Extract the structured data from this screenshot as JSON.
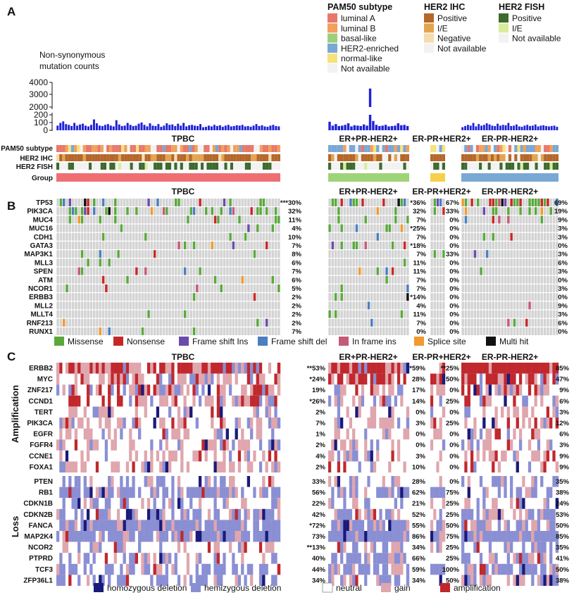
{
  "panels": [
    "A",
    "B",
    "C"
  ],
  "legends": {
    "pam50": {
      "title": "PAM50 subtype",
      "items": [
        {
          "label": "luminal A",
          "color": "#e8786b"
        },
        {
          "label": "luminal B",
          "color": "#f2a05a"
        },
        {
          "label": "basal-like",
          "color": "#9dcf7a"
        },
        {
          "label": "HER2-enriched",
          "color": "#79a8d4"
        },
        {
          "label": "normal-like",
          "color": "#f6e27a"
        },
        {
          "label": "Not available",
          "color": "#f2f2f2"
        }
      ]
    },
    "her2_ihc": {
      "title": "HER2 IHC",
      "items": [
        {
          "label": "Positive",
          "color": "#b5672a"
        },
        {
          "label": "I/E",
          "color": "#e2a54f"
        },
        {
          "label": "Negative",
          "color": "#f5dcaf"
        },
        {
          "label": "Not available",
          "color": "#f2f2f2"
        }
      ]
    },
    "her2_fish": {
      "title": "HER2 FISH",
      "items": [
        {
          "label": "Positive",
          "color": "#3d6b2e"
        },
        {
          "label": "I/E",
          "color": "#d9ec9c"
        },
        {
          "label": "Not available",
          "color": "#f2f2f2"
        }
      ]
    }
  },
  "groups": [
    {
      "name": "TPBC",
      "color": "#ee6f73",
      "n": 38
    },
    {
      "name": "ER+PR-HER2+",
      "color": "#9fd378",
      "n": 14
    },
    {
      "name": "ER-PR+HER2+",
      "color": "#f6d04a",
      "n": 3
    },
    {
      "name": "ER-PR-HER2+",
      "color": "#79a8d4",
      "n": 17
    }
  ],
  "annotation_tracks": [
    "PAM50 subtype",
    "HER2 IHC",
    "HER2 FISH",
    "Group"
  ],
  "mutation_axis": {
    "title": [
      "Non-synonymous",
      "mutation counts"
    ],
    "upper_ticks": [
      "4000",
      "3000",
      "2000"
    ],
    "lower_ticks": [
      "200",
      "100",
      "0"
    ]
  },
  "chart_data": [
    {
      "type": "bar",
      "title": "Non-synonymous mutation counts",
      "ylabel": "",
      "axis_break": {
        "lower": [
          0,
          200
        ],
        "upper": [
          2000,
          4000
        ]
      },
      "series": [
        {
          "group": "TPBC",
          "values": [
            60,
            95,
            115,
            80,
            70,
            55,
            95,
            60,
            75,
            85,
            60,
            50,
            70,
            140,
            90,
            60,
            55,
            70,
            80,
            60,
            50,
            130,
            75,
            55,
            60,
            95,
            70,
            55,
            60,
            85,
            100,
            70,
            50,
            90,
            60,
            55,
            80,
            45,
            60,
            90,
            70,
            75,
            55,
            85,
            60,
            95,
            50,
            65,
            70,
            60,
            55,
            80,
            40,
            45,
            60,
            50,
            70,
            55,
            65,
            45,
            60,
            70,
            50,
            55,
            65,
            60,
            70,
            50,
            55,
            45,
            60,
            80,
            55,
            65,
            50,
            45,
            60,
            70,
            55,
            50
          ]
        },
        {
          "group": "ER+PR-HER2+",
          "values": [
            110,
            60,
            80,
            55,
            60,
            70,
            90,
            50,
            65,
            60,
            55,
            75,
            60,
            3500,
            120,
            70,
            55,
            60,
            70,
            50,
            55,
            60,
            90,
            65,
            70,
            55
          ]
        },
        {
          "group": "ER-PR-HER2+",
          "values": [
            40,
            55,
            70,
            60,
            95,
            50,
            80,
            60,
            70,
            90,
            75,
            60,
            55,
            85,
            60,
            70,
            65,
            95,
            55,
            60,
            75,
            50,
            45,
            60,
            70,
            55,
            60,
            75,
            50,
            60,
            65,
            55,
            50,
            55,
            60,
            45
          ]
        }
      ]
    },
    {
      "type": "heatmap",
      "title": "",
      "legend": [
        "Missense",
        "Nonsense",
        "Frame shift Ins",
        "Frame shift del",
        "In frame ins",
        "Splice site",
        "Multi hit"
      ],
      "legend_colors": [
        "#5aa83c",
        "#c62828",
        "#6a4ca8",
        "#4a7fc0",
        "#c45a78",
        "#f09a30",
        "#111111"
      ],
      "genes": [
        "TP53",
        "PIK3CA",
        "MUC4",
        "MUC16",
        "CDH1",
        "GATA3",
        "MAP3K1",
        "MLL3",
        "SPEN",
        "ATM",
        "NCOR1",
        "ERBB3",
        "MLL2",
        "MLLT4",
        "RNF213",
        "RUNX1"
      ],
      "percent": {
        "TPBC": [
          "***30%",
          "32%",
          "11%",
          "4%",
          "10%",
          "7%",
          "8%",
          "6%",
          "7%",
          "6%",
          "5%",
          "2%",
          "2%",
          "2%",
          "2%",
          "7%"
        ],
        "ER+PR-HER2+": [
          "*36%",
          "32%",
          "7%",
          "*25%",
          "7%",
          "*18%",
          "7%",
          "11%",
          "11%",
          "7%",
          "7%",
          "*14%",
          "4%",
          "11%",
          "7%",
          "0%"
        ],
        "ER-PR+HER2+": [
          "67%",
          "33%",
          "0%",
          "0%",
          "0%",
          "0%",
          "33%",
          "0%",
          "0%",
          "0%",
          "0%",
          "0%",
          "0%",
          "0%",
          "0%",
          "0%"
        ],
        "ER-PR-HER2+": [
          "69%",
          "19%",
          "9%",
          "3%",
          "3%",
          "0%",
          "3%",
          "6%",
          "3%",
          "0%",
          "3%",
          "0%",
          "9%",
          "3%",
          "6%",
          "0%"
        ]
      }
    },
    {
      "type": "heatmap",
      "title": "",
      "legend": [
        "homozygous deletion",
        "hemizygous deletion",
        "neutral",
        "gain",
        "amplification"
      ],
      "legend_colors": [
        "#1a1a7a",
        "#8a8fd4",
        "#ffffff",
        "#e0a6ad",
        "#c0282d"
      ],
      "amplification": {
        "label": "Amplification",
        "genes": [
          "ERBB2",
          "MYC",
          "ZNF217",
          "CCND1",
          "TERT",
          "PIK3CA",
          "EGFR",
          "FGFR4",
          "CCNE1",
          "FOXA1"
        ],
        "percent": {
          "TPBC": [
            "**53%",
            "*24%",
            "19%",
            "*26%",
            "2%",
            "7%",
            "1%",
            "2%",
            "4%",
            "2%"
          ],
          "ER+PR-HER2+": [
            "*59%",
            "28%",
            "17%",
            "14%",
            "0%",
            "3%",
            "0%",
            "0%",
            "3%",
            "10%"
          ],
          "ER-PR+HER2+": [
            "**25%",
            "50%",
            "0%",
            "25%",
            "0%",
            "25%",
            "0%",
            "0%",
            "0%",
            "0%"
          ],
          "ER-PR-HER2+": [
            "85%",
            "47%",
            "9%",
            "6%",
            "3%",
            "12%",
            "6%",
            "3%",
            "9%",
            "9%"
          ]
        }
      },
      "loss": {
        "label": "Loss",
        "genes": [
          "PTEN",
          "RB1",
          "CDKN1B",
          "CDKN2B",
          "FANCA",
          "MAP2K4",
          "NCOR2",
          "PTPRD",
          "TCF3",
          "ZFP36L1"
        ],
        "percent": {
          "TPBC": [
            "33%",
            "56%",
            "22%",
            "42%",
            "*72%",
            "73%",
            "**13%",
            "40%",
            "44%",
            "34%"
          ],
          "ER+PR-HER2+": [
            "28%",
            "62%",
            "21%",
            "52%",
            "55%",
            "86%",
            "34%",
            "66%",
            "59%",
            "34%"
          ],
          "ER-PR+HER2+": [
            "0%",
            "75%",
            "25%",
            "25%",
            "50%",
            "75%",
            "25%",
            "25%",
            "100%",
            "50%"
          ],
          "ER-PR-HER2+": [
            "35%",
            "38%",
            "24%",
            "53%",
            "50%",
            "85%",
            "35%",
            "41%",
            "50%",
            "38%"
          ]
        }
      }
    }
  ]
}
